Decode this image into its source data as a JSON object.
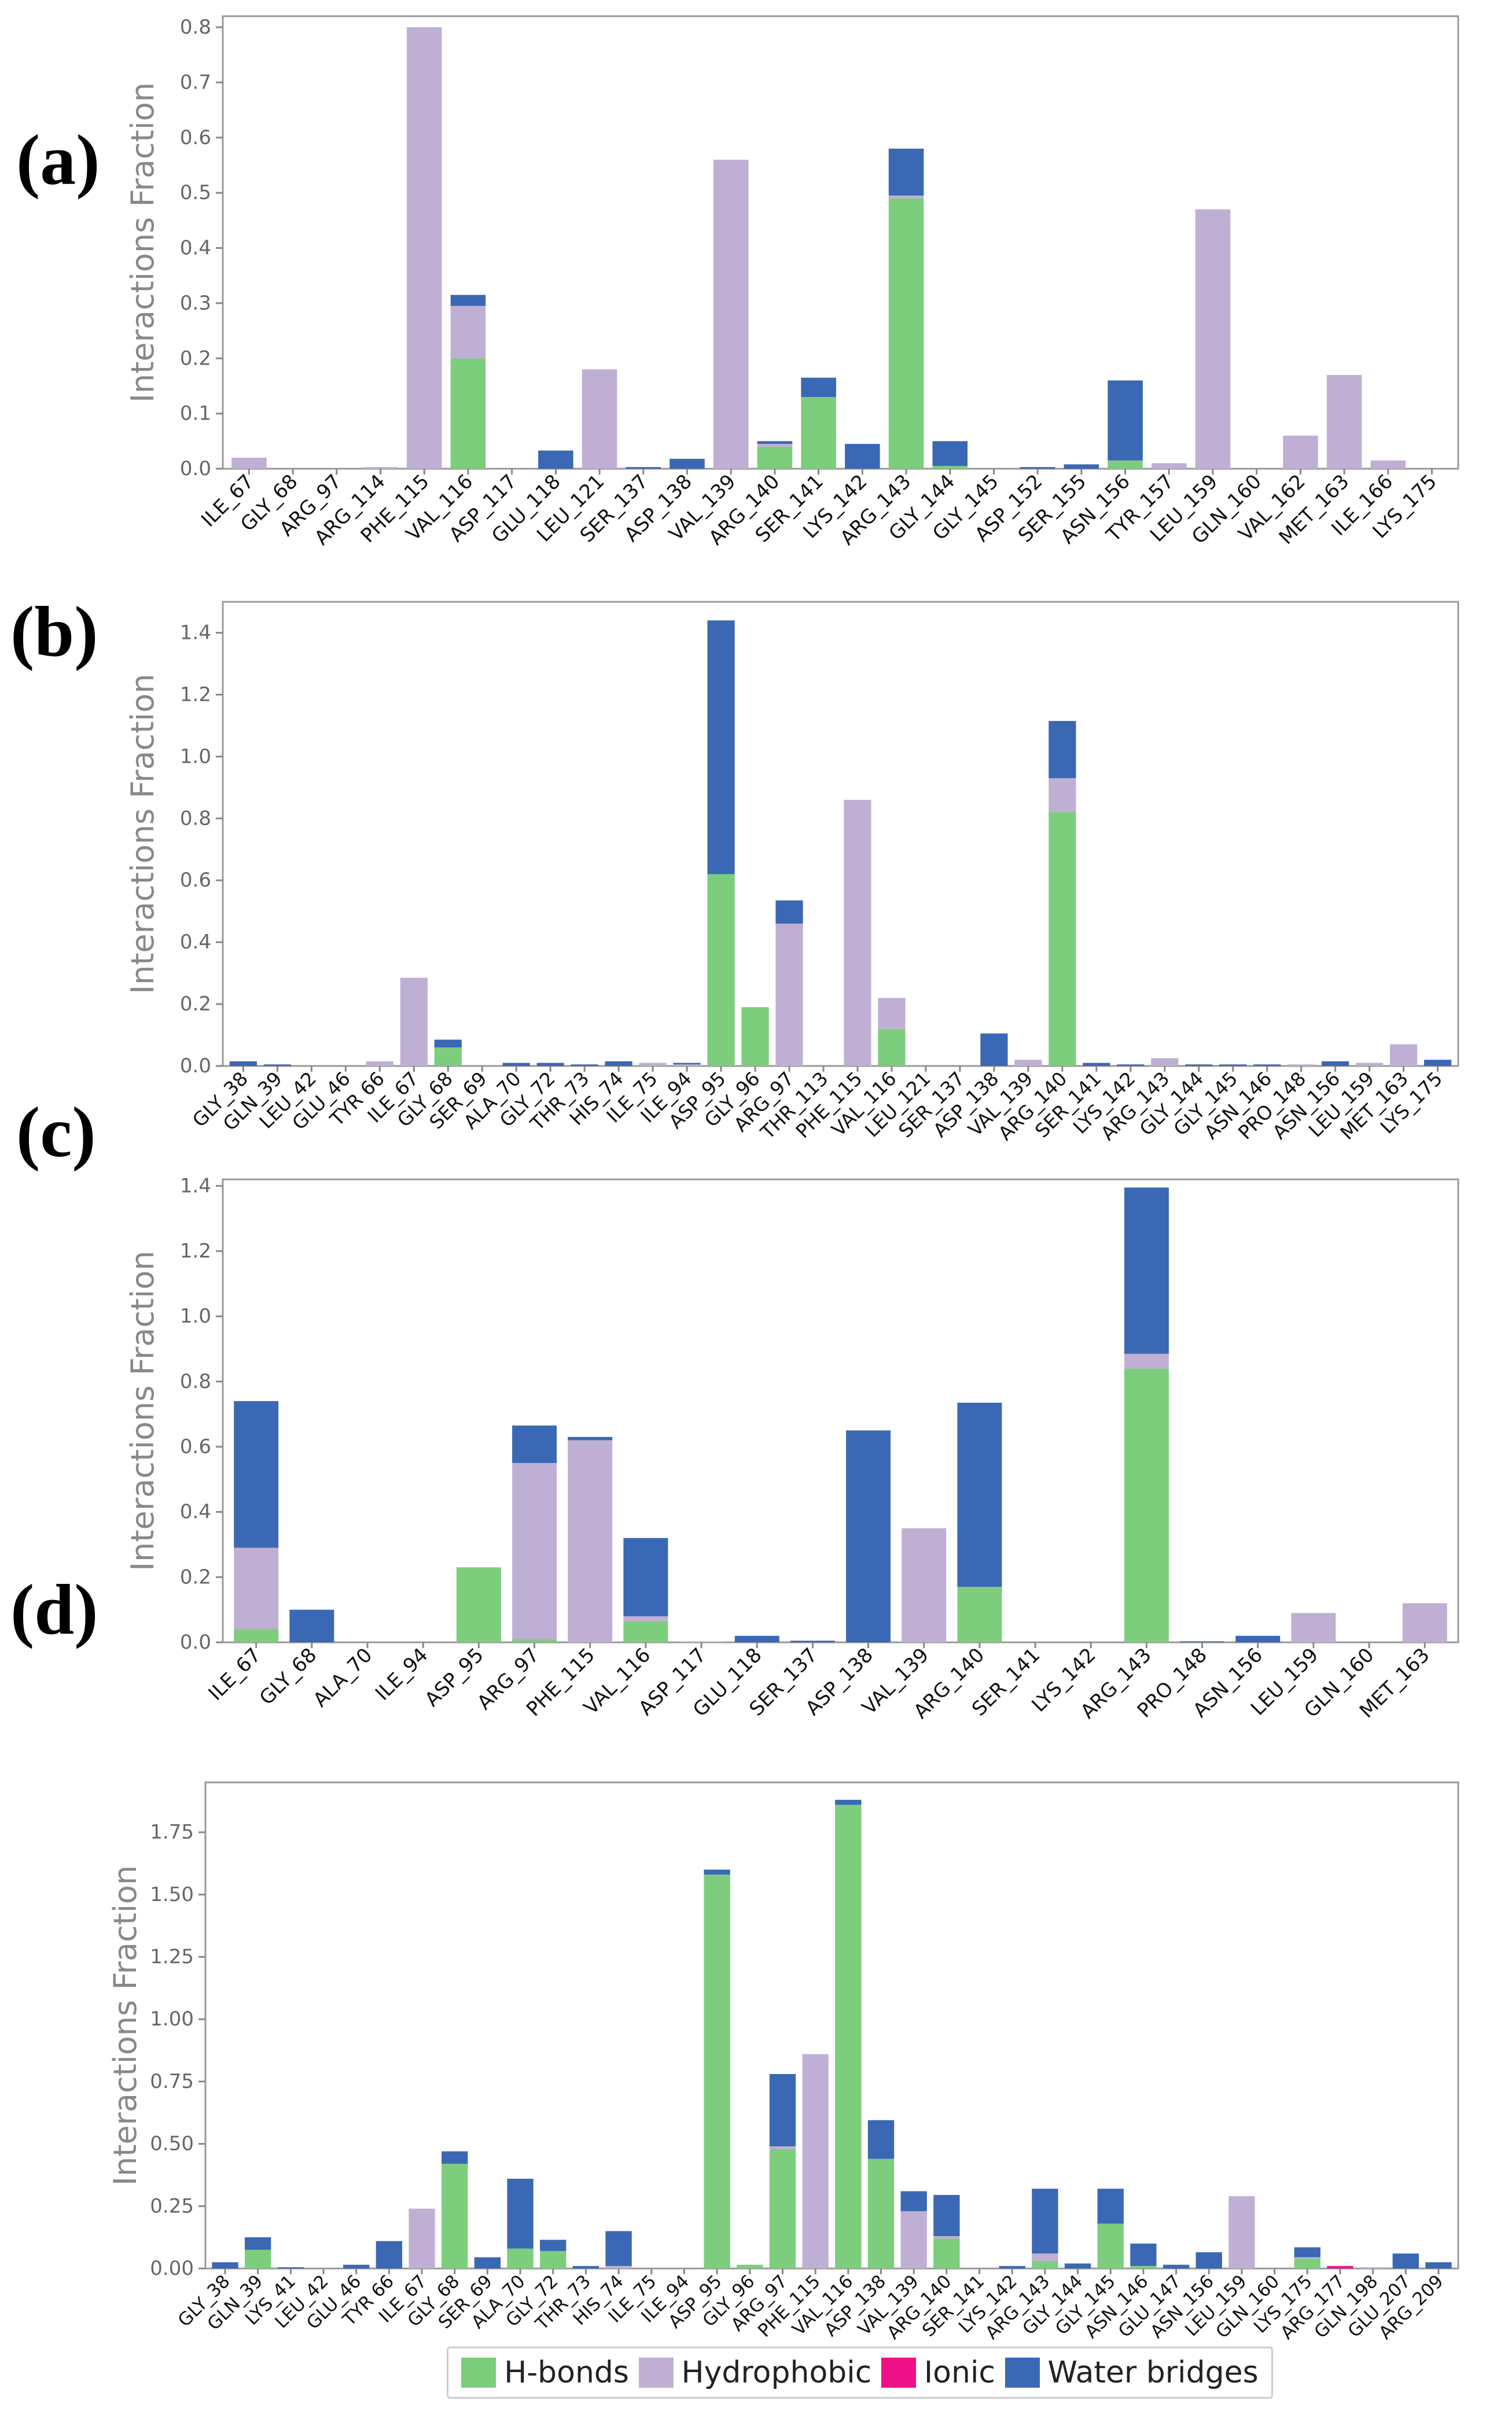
{
  "panel_labels": [
    "(a)",
    "(b)",
    "(c)",
    "(d)"
  ],
  "legend": [
    {
      "name": "H-bonds",
      "color": "#7ccd7c"
    },
    {
      "name": "Hydrophobic",
      "color": "#c0afd4"
    },
    {
      "name": "Ionic",
      "color": "#ee1188"
    },
    {
      "name": "Water bridges",
      "color": "#3a68b4"
    }
  ],
  "chart_data": [
    {
      "type": "bar",
      "stacked": true,
      "ylabel": "Interactions Fraction",
      "ylim": [
        0,
        0.82
      ],
      "yticks": [
        0.0,
        0.1,
        0.2,
        0.3,
        0.4,
        0.5,
        0.6,
        0.7,
        0.8
      ],
      "ytick_labels": [
        "0.0",
        "0.1",
        "0.2",
        "0.3",
        "0.4",
        "0.5",
        "0.6",
        "0.7",
        "0.8"
      ],
      "categories": [
        "ILE_67",
        "GLY_68",
        "ARG_97",
        "ARG_114",
        "PHE_115",
        "VAL_116",
        "ASP_117",
        "GLU_118",
        "LEU_121",
        "SER_137",
        "ASP_138",
        "VAL_139",
        "ARG_140",
        "SER_141",
        "LYS_142",
        "ARG_143",
        "GLY_144",
        "GLY_145",
        "ASP_152",
        "SER_155",
        "ASN_156",
        "TYR_157",
        "LEU_159",
        "GLN_160",
        "VAL_162",
        "MET_163",
        "ILE_166",
        "LYS_175"
      ],
      "series": [
        {
          "name": "H-bonds",
          "values": [
            0,
            0,
            0,
            0,
            0,
            0.2,
            0,
            0,
            0,
            0,
            0,
            0,
            0.04,
            0.13,
            0,
            0.49,
            0.005,
            0,
            0,
            0,
            0.015,
            0,
            0,
            0,
            0,
            0,
            0,
            0
          ]
        },
        {
          "name": "Hydrophobic",
          "values": [
            0.02,
            0,
            0,
            0.003,
            0.8,
            0.095,
            0,
            0,
            0.18,
            0,
            0,
            0.56,
            0.005,
            0,
            0,
            0.005,
            0,
            0,
            0,
            0,
            0,
            0.01,
            0.47,
            0,
            0.06,
            0.17,
            0.015,
            0
          ]
        },
        {
          "name": "Ionic",
          "values": [
            0,
            0,
            0,
            0,
            0,
            0,
            0,
            0,
            0,
            0,
            0,
            0,
            0,
            0,
            0,
            0,
            0,
            0,
            0,
            0,
            0,
            0,
            0,
            0,
            0,
            0,
            0,
            0
          ]
        },
        {
          "name": "Water bridges",
          "values": [
            0,
            0,
            0,
            0,
            0,
            0.02,
            0,
            0.033,
            0,
            0.003,
            0.018,
            0,
            0.005,
            0.035,
            0.045,
            0.085,
            0.045,
            0,
            0.003,
            0.008,
            0.145,
            0,
            0,
            0,
            0,
            0,
            0,
            0
          ]
        }
      ]
    },
    {
      "type": "bar",
      "stacked": true,
      "ylabel": "Interactions Fraction",
      "ylim": [
        0,
        1.5
      ],
      "yticks": [
        0.0,
        0.2,
        0.4,
        0.6,
        0.8,
        1.0,
        1.2,
        1.4
      ],
      "ytick_labels": [
        "0.0",
        "0.2",
        "0.4",
        "0.6",
        "0.8",
        "1.0",
        "1.2",
        "1.4"
      ],
      "categories": [
        "GLY_38",
        "GLN_39",
        "LEU_42",
        "GLU_46",
        "TYR 66",
        "ILE_67",
        "GLY_68",
        "SER_69",
        "ALA_70",
        "GLY_72",
        "THR_73",
        "HIS_74",
        "ILE_75",
        "ILE_94",
        "ASP_95",
        "GLY_96",
        "ARG_97",
        "THR_113",
        "PHE_115",
        "VAL_116",
        "LEU_121",
        "SER_137",
        "ASP_138",
        "VAL_139",
        "ARG_140",
        "SER_141",
        "LYS_142",
        "ARG_143",
        "GLY_144",
        "GLY_145",
        "ASN_146",
        "PRO_148",
        "ASN_156",
        "LEU_159",
        "MET_163",
        "LYS_175"
      ],
      "series": [
        {
          "name": "H-bonds",
          "values": [
            0,
            0,
            0,
            0,
            0,
            0,
            0.06,
            0,
            0,
            0,
            0,
            0,
            0,
            0,
            0.62,
            0.19,
            0,
            0,
            0,
            0.12,
            0,
            0,
            0,
            0,
            0.82,
            0,
            0,
            0,
            0,
            0,
            0,
            0,
            0,
            0,
            0,
            0
          ]
        },
        {
          "name": "Hydrophobic",
          "values": [
            0,
            0,
            0,
            0,
            0.015,
            0.285,
            0,
            0,
            0,
            0,
            0,
            0,
            0.01,
            0.005,
            0,
            0,
            0.46,
            0,
            0.86,
            0.1,
            0,
            0,
            0,
            0.02,
            0.11,
            0,
            0,
            0.025,
            0,
            0,
            0,
            0.005,
            0,
            0.01,
            0.07,
            0
          ]
        },
        {
          "name": "Ionic",
          "values": [
            0,
            0,
            0,
            0,
            0,
            0,
            0,
            0,
            0,
            0,
            0,
            0,
            0,
            0,
            0,
            0,
            0,
            0,
            0,
            0,
            0,
            0,
            0,
            0,
            0,
            0,
            0,
            0,
            0,
            0,
            0,
            0,
            0,
            0,
            0,
            0
          ]
        },
        {
          "name": "Water bridges",
          "values": [
            0.015,
            0.005,
            0,
            0,
            0,
            0,
            0.025,
            0,
            0.01,
            0.01,
            0.005,
            0.015,
            0,
            0.005,
            0.82,
            0,
            0.075,
            0,
            0,
            0,
            0,
            0,
            0.105,
            0,
            0.185,
            0.01,
            0.005,
            0,
            0.005,
            0.005,
            0.005,
            0,
            0.015,
            0,
            0,
            0.02
          ]
        }
      ]
    },
    {
      "type": "bar",
      "stacked": true,
      "ylabel": "Interactions Fraction",
      "ylim": [
        0,
        1.42
      ],
      "yticks": [
        0.0,
        0.2,
        0.4,
        0.6,
        0.8,
        1.0,
        1.2,
        1.4
      ],
      "ytick_labels": [
        "0.0",
        "0.2",
        "0.4",
        "0.6",
        "0.8",
        "1.0",
        "1.2",
        "1.4"
      ],
      "categories": [
        "ILE_67",
        "GLY_68",
        "ALA_70",
        "ILE_94",
        "ASP_95",
        "ARG_97",
        "PHE_115",
        "VAL_116",
        "ASP_117",
        "GLU_118",
        "SER_137",
        "ASP_138",
        "VAL_139",
        "ARG_140",
        "SER_141",
        "LYS_142",
        "ARG_143",
        "PRO_148",
        "ASN_156",
        "LEU_159",
        "GLN_160",
        "MET_163"
      ],
      "series": [
        {
          "name": "H-bonds",
          "values": [
            0.04,
            0,
            0,
            0,
            0.23,
            0.01,
            0,
            0.065,
            0,
            0,
            0,
            0,
            0,
            0.17,
            0,
            0,
            0.84,
            0,
            0,
            0,
            0,
            0
          ]
        },
        {
          "name": "Hydrophobic",
          "values": [
            0.25,
            0,
            0,
            0,
            0,
            0.54,
            0.62,
            0.015,
            0.003,
            0,
            0,
            0,
            0.35,
            0,
            0,
            0,
            0.045,
            0,
            0,
            0.09,
            0,
            0.12
          ]
        },
        {
          "name": "Ionic",
          "values": [
            0,
            0,
            0,
            0,
            0,
            0,
            0,
            0,
            0,
            0,
            0,
            0,
            0,
            0,
            0,
            0,
            0,
            0,
            0,
            0,
            0,
            0
          ]
        },
        {
          "name": "Water bridges",
          "values": [
            0.45,
            0.1,
            0,
            0,
            0,
            0.115,
            0.01,
            0.24,
            0,
            0.02,
            0.005,
            0.65,
            0,
            0.565,
            0,
            0,
            0.51,
            0.003,
            0.02,
            0,
            0,
            0
          ]
        }
      ]
    },
    {
      "type": "bar",
      "stacked": true,
      "ylabel": "Interactions Fraction",
      "ylim": [
        0,
        1.95
      ],
      "yticks": [
        0.0,
        0.25,
        0.5,
        0.75,
        1.0,
        1.25,
        1.5,
        1.75
      ],
      "ytick_labels": [
        "0.00",
        "0.25",
        "0.50",
        "0.75",
        "1.00",
        "1.25",
        "1.50",
        "1.75"
      ],
      "categories": [
        "GLY_38",
        "GLN_39",
        "LYS_41",
        "LEU_42",
        "GLU_46",
        "TYR 66",
        "ILE_67",
        "GLY_68",
        "SER_69",
        "ALA_70",
        "GLY_72",
        "THR_73",
        "HIS_74",
        "ILE_75",
        "ILE_94",
        "ASP_95",
        "GLY_96",
        "ARG_97",
        "PHE_115",
        "VAL_116",
        "ASP_138",
        "VAL_139",
        "ARG_140",
        "SER_141",
        "LYS_142",
        "ARG_143",
        "GLY_144",
        "GLY_145",
        "ASN_146",
        "GLU_147",
        "ASN_156",
        "LEU_159",
        "GLN_160",
        "LYS_175",
        "ARG_177",
        "GLN_198",
        "GLU_207",
        "ARG_209"
      ],
      "series": [
        {
          "name": "H-bonds",
          "values": [
            0,
            0.075,
            0,
            0,
            0,
            0,
            0,
            0.42,
            0,
            0.08,
            0.07,
            0,
            0,
            0,
            0,
            1.58,
            0.015,
            0.48,
            0,
            1.86,
            0.44,
            0,
            0.12,
            0,
            0,
            0.03,
            0,
            0.18,
            0.01,
            0,
            0,
            0,
            0,
            0.04,
            0,
            0,
            0,
            0
          ]
        },
        {
          "name": "Hydrophobic",
          "values": [
            0,
            0,
            0,
            0,
            0,
            0,
            0.24,
            0,
            0,
            0,
            0,
            0,
            0.01,
            0,
            0,
            0,
            0,
            0.01,
            0.86,
            0,
            0,
            0.23,
            0.01,
            0,
            0,
            0.03,
            0,
            0,
            0,
            0,
            0,
            0.29,
            0,
            0.005,
            0,
            0.005,
            0,
            0
          ]
        },
        {
          "name": "Ionic",
          "values": [
            0,
            0,
            0,
            0,
            0,
            0,
            0,
            0,
            0,
            0,
            0,
            0,
            0,
            0,
            0,
            0,
            0,
            0,
            0,
            0,
            0,
            0,
            0,
            0,
            0,
            0,
            0,
            0,
            0,
            0,
            0,
            0,
            0,
            0,
            0.01,
            0,
            0,
            0
          ]
        },
        {
          "name": "Water bridges",
          "values": [
            0.025,
            0.05,
            0.005,
            0,
            0.015,
            0.11,
            0,
            0.05,
            0.045,
            0.28,
            0.045,
            0.01,
            0.14,
            0,
            0,
            0.02,
            0,
            0.29,
            0,
            0.02,
            0.155,
            0.08,
            0.165,
            0,
            0.01,
            0.26,
            0.02,
            0.14,
            0.09,
            0.015,
            0.065,
            0,
            0,
            0.04,
            0,
            0,
            0.06,
            0.025
          ]
        }
      ]
    }
  ]
}
